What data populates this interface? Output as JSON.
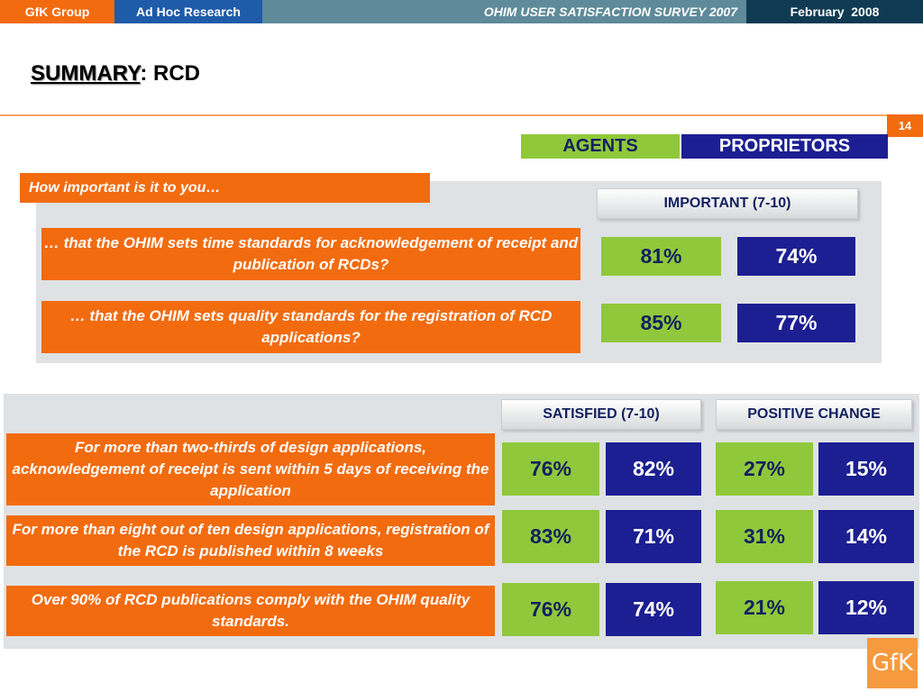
{
  "header": {
    "company": "GfK Group",
    "division": "Ad Hoc Research",
    "survey": "OHIM USER SATISFACTION SURVEY 2007",
    "date": "February  2008"
  },
  "title": {
    "emphasis": "SUMMARY",
    "rest": ": RCD"
  },
  "page_number": "14",
  "legend": {
    "agents": "AGENTS",
    "proprietors": "PROPRIETORS"
  },
  "colors": {
    "orange": "#f26b0f",
    "agents_green": "#8fc83b",
    "proprietors_blue": "#1c1f91",
    "panel_grey": "#dfe2e4"
  },
  "importance": {
    "intro": "How important is it to you…",
    "column_header": "IMPORTANT (7-10)",
    "rows": [
      {
        "question": "… that the OHIM sets time standards for acknowledgement of receipt and publication of RCDs?",
        "agents": "81%",
        "proprietors": "74%"
      },
      {
        "question": "… that the OHIM sets quality standards for the registration of RCD applications?",
        "agents": "85%",
        "proprietors": "77%"
      }
    ]
  },
  "satisfaction": {
    "col_satisfied": "SATISFIED (7-10)",
    "col_change": "POSITIVE CHANGE",
    "rows": [
      {
        "statement": "For more than two-thirds of design applications, acknowledgement of receipt is sent within 5 days of receiving the application",
        "satisfied_agents": "76%",
        "satisfied_proprietors": "82%",
        "change_agents": "27%",
        "change_proprietors": "15%"
      },
      {
        "statement": "For more than eight out of ten design applications, registration of the RCD is published within 8 weeks",
        "satisfied_agents": "83%",
        "satisfied_proprietors": "71%",
        "change_agents": "31%",
        "change_proprietors": "14%"
      },
      {
        "statement": "Over 90% of RCD publications comply with the OHIM quality standards.",
        "satisfied_agents": "76%",
        "satisfied_proprietors": "74%",
        "change_agents": "21%",
        "change_proprietors": "12%"
      }
    ]
  },
  "logo": {
    "text": "GfK",
    "icon": "gfk-logo-icon"
  }
}
